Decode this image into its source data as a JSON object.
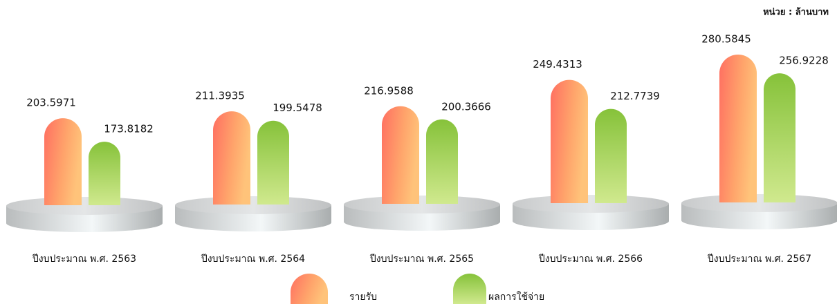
{
  "chart_data": {
    "type": "bar",
    "subtitle": "หน่วย : ล้านบาท",
    "categories": [
      "ปีงบประมาณ พ.ศ. 2563",
      "ปีงบประมาณ พ.ศ. 2564",
      "ปีงบประมาณ พ.ศ. 2565",
      "ปีงบประมาณ พ.ศ. 2566",
      "ปีงบประมาณ พ.ศ. 2567"
    ],
    "series": [
      {
        "name": "รายรับ",
        "color": "#ffa96b",
        "values": [
          203.5971,
          211.3935,
          216.9588,
          249.4313,
          280.5845
        ]
      },
      {
        "name": "ผลการใช้จ่าย",
        "color": "#8cc63f",
        "values": [
          173.8182,
          199.5478,
          200.3666,
          212.7739,
          256.9228
        ]
      }
    ],
    "legend": "bottom"
  }
}
